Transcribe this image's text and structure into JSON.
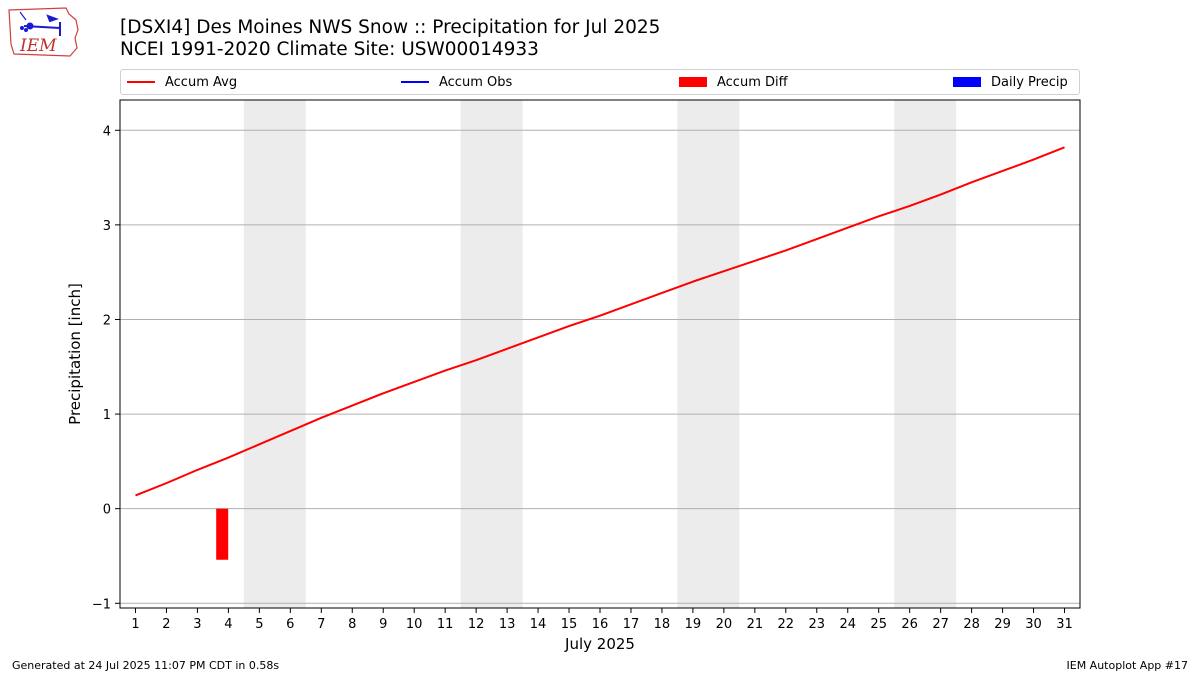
{
  "title": {
    "line1": "[DSXI4] Des Moines NWS Snow :: Precipitation for Jul 2025",
    "line2": "NCEI 1991-2020 Climate Site: USW00014933"
  },
  "logo": {
    "text": "IEM"
  },
  "legend": [
    {
      "label": "Accum Avg",
      "color": "#ff0000",
      "kind": "line"
    },
    {
      "label": "Accum Obs",
      "color": "#0000ff",
      "kind": "line"
    },
    {
      "label": "Accum Diff",
      "color": "#ff0000",
      "kind": "patch"
    },
    {
      "label": "Daily Precip",
      "color": "#0000ff",
      "kind": "patch"
    }
  ],
  "footer": {
    "left": "Generated at 24 Jul 2025 11:07 PM CDT in 0.58s",
    "right": "IEM Autoplot App #17"
  },
  "chart_data": {
    "type": "line",
    "xlabel": "July 2025",
    "ylabel": "Precipitation [inch]",
    "x": [
      1,
      2,
      3,
      4,
      5,
      6,
      7,
      8,
      9,
      10,
      11,
      12,
      13,
      14,
      15,
      16,
      17,
      18,
      19,
      20,
      21,
      22,
      23,
      24,
      25,
      26,
      27,
      28,
      29,
      30,
      31
    ],
    "xlim": [
      0.5,
      31.5
    ],
    "ylim": [
      -1.05,
      4.32
    ],
    "yticks": [
      -1,
      0,
      1,
      2,
      3,
      4
    ],
    "ytick_labels": [
      "−1",
      "0",
      "1",
      "2",
      "3",
      "4"
    ],
    "grid": "horizontal",
    "weekend_shading": [
      [
        4.5,
        6.5
      ],
      [
        11.5,
        13.5
      ],
      [
        18.5,
        20.5
      ],
      [
        25.5,
        27.5
      ]
    ],
    "series": [
      {
        "name": "Accum Avg",
        "type": "line",
        "color": "#ff0000",
        "values": [
          0.14,
          0.27,
          0.41,
          0.54,
          0.68,
          0.82,
          0.96,
          1.09,
          1.22,
          1.34,
          1.46,
          1.57,
          1.69,
          1.81,
          1.93,
          2.04,
          2.16,
          2.28,
          2.4,
          2.51,
          2.62,
          2.73,
          2.85,
          2.97,
          3.09,
          3.2,
          3.32,
          3.45,
          3.57,
          3.69,
          3.82
        ]
      },
      {
        "name": "Accum Diff",
        "type": "bar",
        "color": "#ff0000",
        "x": [
          3.8
        ],
        "values": [
          -0.54
        ]
      }
    ]
  }
}
